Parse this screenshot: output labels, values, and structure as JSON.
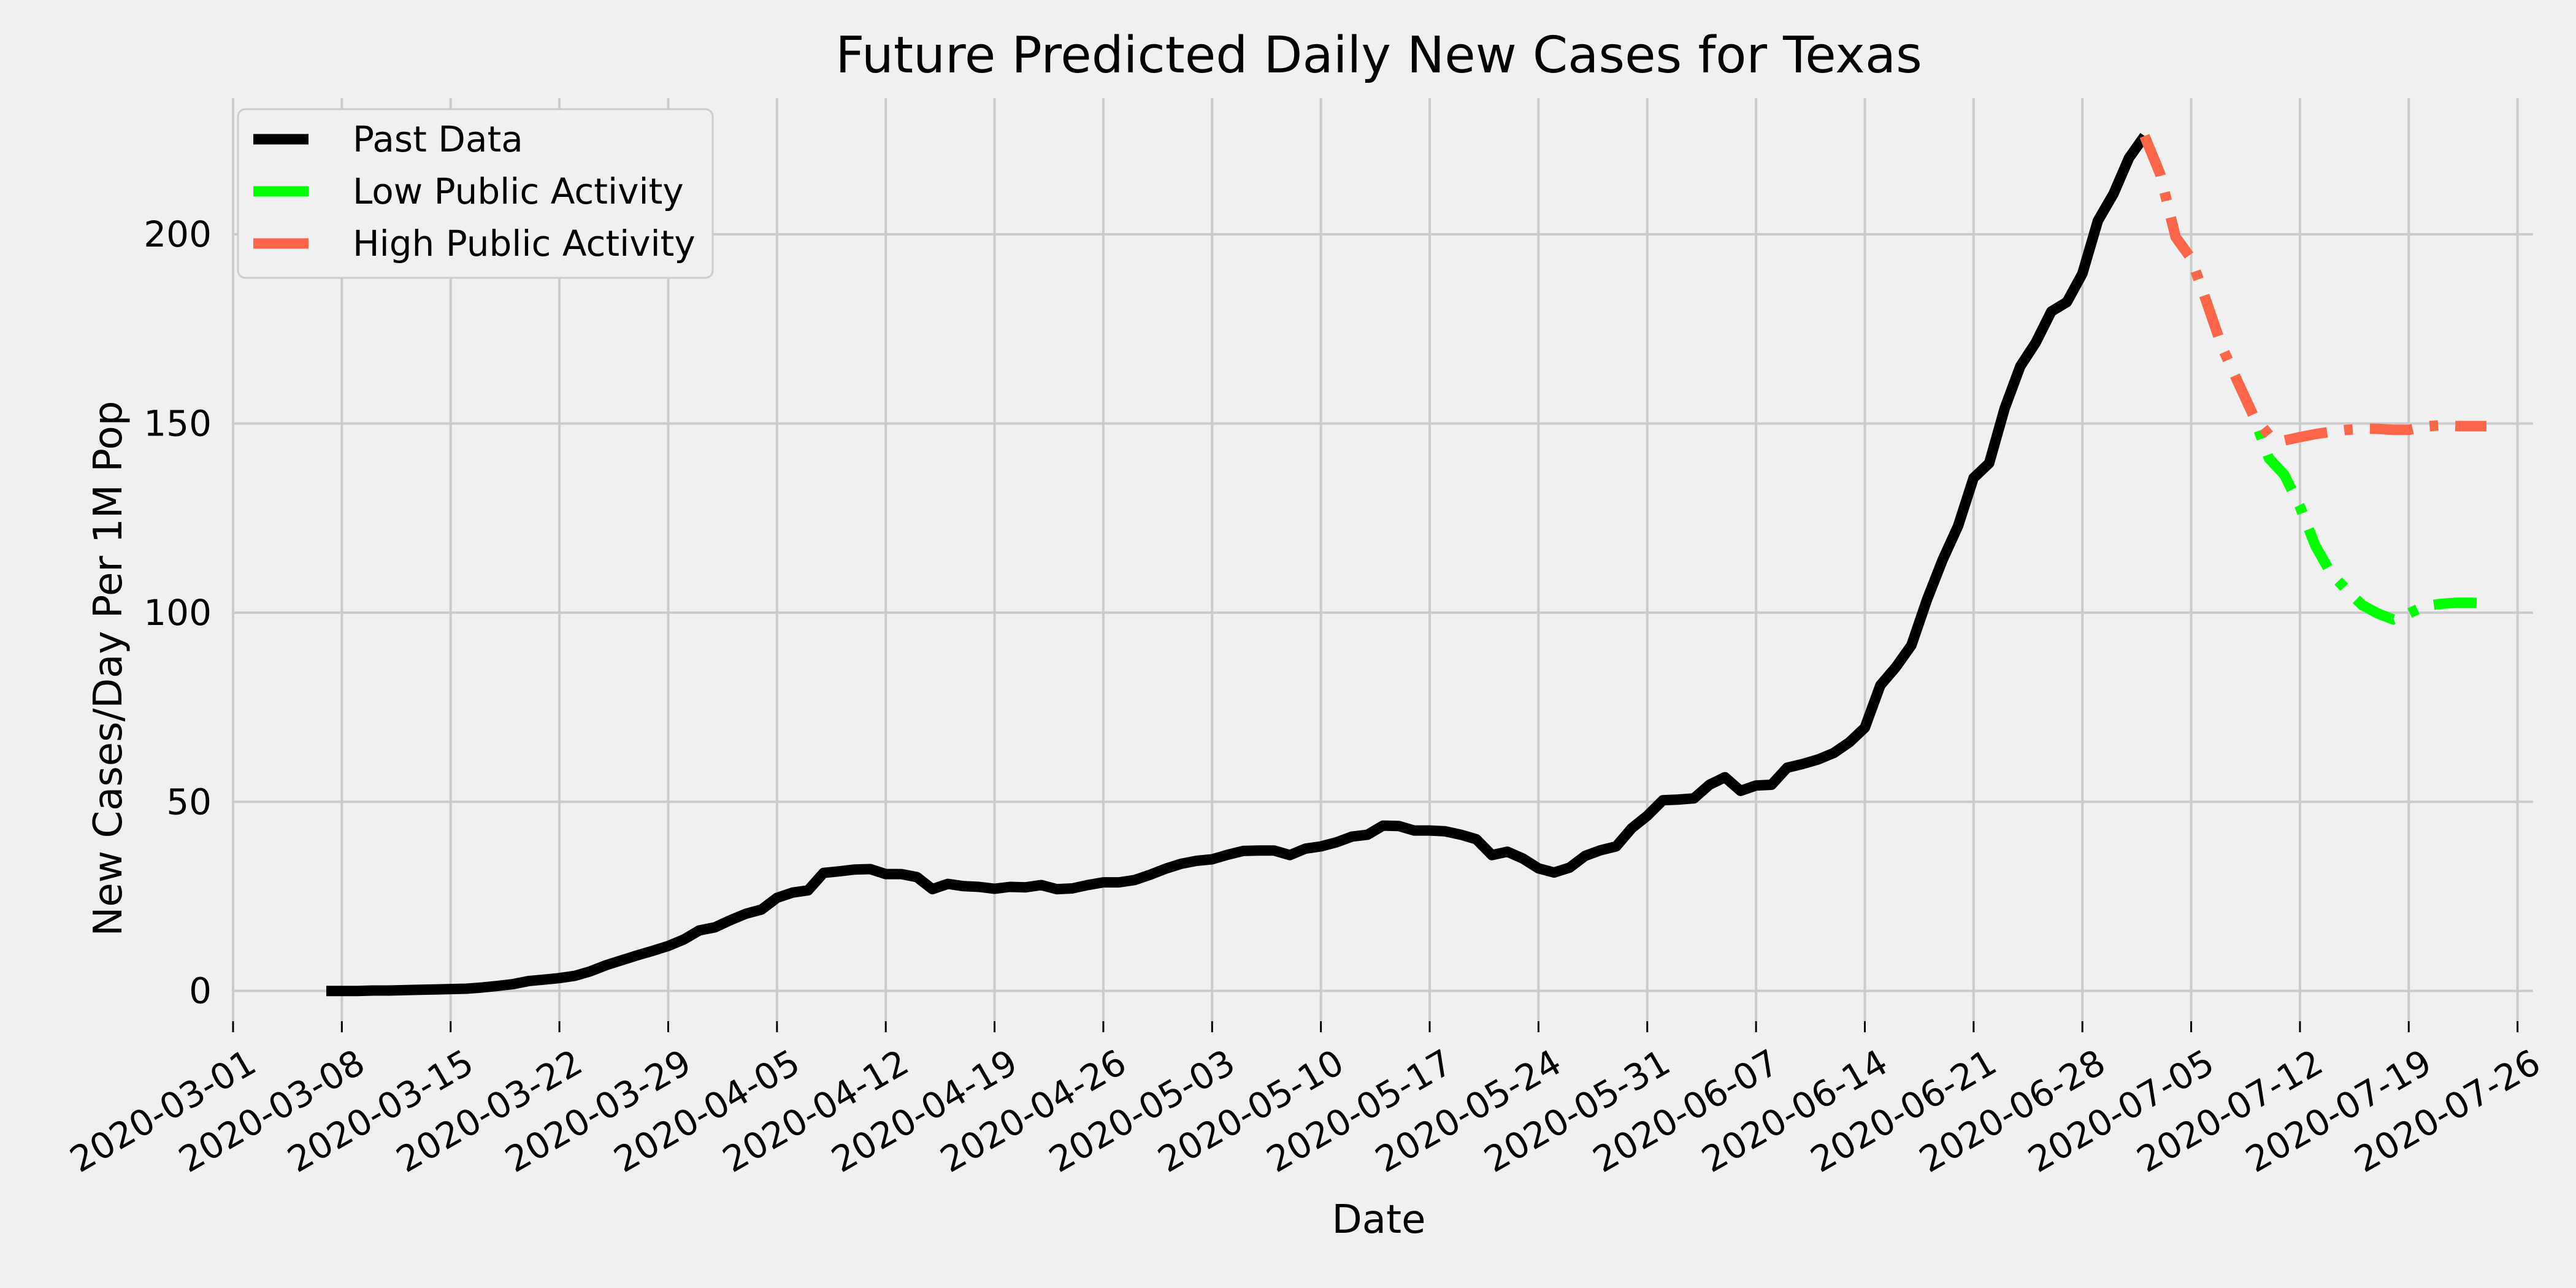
{
  "chart_data": {
    "type": "line",
    "title": "Future Predicted Daily New Cases for Texas",
    "xlabel": "Date",
    "ylabel": "New Cases/Day Per 1M Pop",
    "xlim": [
      "2020-03-01",
      "2020-07-27"
    ],
    "ylim": [
      -8,
      236
    ],
    "grid": true,
    "legend_position": "top-left",
    "x_ticks": [
      "2020-03-01",
      "2020-03-08",
      "2020-03-15",
      "2020-03-22",
      "2020-03-29",
      "2020-04-05",
      "2020-04-12",
      "2020-04-19",
      "2020-04-26",
      "2020-05-03",
      "2020-05-10",
      "2020-05-17",
      "2020-05-24",
      "2020-05-31",
      "2020-06-07",
      "2020-06-14",
      "2020-06-21",
      "2020-06-28",
      "2020-07-05",
      "2020-07-12",
      "2020-07-19",
      "2020-07-26"
    ],
    "y_ticks": [
      0,
      50,
      100,
      150,
      200
    ],
    "series": [
      {
        "name": "Past Data",
        "color": "#000000",
        "style": "solid",
        "points": [
          [
            "2020-03-07",
            0
          ],
          [
            "2020-03-08",
            0
          ],
          [
            "2020-03-09",
            0
          ],
          [
            "2020-03-10",
            0.1
          ],
          [
            "2020-03-11",
            0.1
          ],
          [
            "2020-03-12",
            0.2
          ],
          [
            "2020-03-13",
            0.3
          ],
          [
            "2020-03-14",
            0.4
          ],
          [
            "2020-03-15",
            0.5
          ],
          [
            "2020-03-16",
            0.6
          ],
          [
            "2020-03-17",
            0.9
          ],
          [
            "2020-03-18",
            1.3
          ],
          [
            "2020-03-19",
            1.8
          ],
          [
            "2020-03-20",
            2.6
          ],
          [
            "2020-03-21",
            3.0
          ],
          [
            "2020-03-22",
            3.4
          ],
          [
            "2020-03-23",
            4.0
          ],
          [
            "2020-03-24",
            5.2
          ],
          [
            "2020-03-25",
            6.8
          ],
          [
            "2020-03-26",
            8.1
          ],
          [
            "2020-03-27",
            9.4
          ],
          [
            "2020-03-28",
            10.6
          ],
          [
            "2020-03-29",
            11.9
          ],
          [
            "2020-03-30",
            13.6
          ],
          [
            "2020-03-31",
            16.0
          ],
          [
            "2020-04-01",
            16.8
          ],
          [
            "2020-04-02",
            18.7
          ],
          [
            "2020-04-03",
            20.4
          ],
          [
            "2020-04-04",
            21.5
          ],
          [
            "2020-04-05",
            24.6
          ],
          [
            "2020-04-06",
            26.0
          ],
          [
            "2020-04-07",
            26.6
          ],
          [
            "2020-04-08",
            31.2
          ],
          [
            "2020-04-09",
            31.6
          ],
          [
            "2020-04-10",
            32.1
          ],
          [
            "2020-04-11",
            32.2
          ],
          [
            "2020-04-12",
            30.9
          ],
          [
            "2020-04-13",
            30.9
          ],
          [
            "2020-04-14",
            30.1
          ],
          [
            "2020-04-15",
            26.9
          ],
          [
            "2020-04-16",
            28.3
          ],
          [
            "2020-04-17",
            27.7
          ],
          [
            "2020-04-18",
            27.5
          ],
          [
            "2020-04-19",
            27.0
          ],
          [
            "2020-04-20",
            27.5
          ],
          [
            "2020-04-21",
            27.4
          ],
          [
            "2020-04-22",
            28.0
          ],
          [
            "2020-04-23",
            26.9
          ],
          [
            "2020-04-24",
            27.1
          ],
          [
            "2020-04-25",
            28.0
          ],
          [
            "2020-04-26",
            28.7
          ],
          [
            "2020-04-27",
            28.7
          ],
          [
            "2020-04-28",
            29.3
          ],
          [
            "2020-04-29",
            30.7
          ],
          [
            "2020-04-30",
            32.3
          ],
          [
            "2020-05-01",
            33.6
          ],
          [
            "2020-05-02",
            34.4
          ],
          [
            "2020-05-03",
            34.8
          ],
          [
            "2020-05-04",
            36.0
          ],
          [
            "2020-05-05",
            37.0
          ],
          [
            "2020-05-06",
            37.1
          ],
          [
            "2020-05-07",
            37.1
          ],
          [
            "2020-05-08",
            35.9
          ],
          [
            "2020-05-09",
            37.6
          ],
          [
            "2020-05-10",
            38.2
          ],
          [
            "2020-05-11",
            39.3
          ],
          [
            "2020-05-12",
            40.8
          ],
          [
            "2020-05-13",
            41.3
          ],
          [
            "2020-05-14",
            43.7
          ],
          [
            "2020-05-15",
            43.6
          ],
          [
            "2020-05-16",
            42.4
          ],
          [
            "2020-05-17",
            42.4
          ],
          [
            "2020-05-18",
            42.2
          ],
          [
            "2020-05-19",
            41.3
          ],
          [
            "2020-05-20",
            40.1
          ],
          [
            "2020-05-21",
            35.9
          ],
          [
            "2020-05-22",
            36.8
          ],
          [
            "2020-05-23",
            35.0
          ],
          [
            "2020-05-24",
            32.4
          ],
          [
            "2020-05-25",
            31.3
          ],
          [
            "2020-05-26",
            32.6
          ],
          [
            "2020-05-27",
            35.7
          ],
          [
            "2020-05-28",
            37.2
          ],
          [
            "2020-05-29",
            38.2
          ],
          [
            "2020-05-30",
            43.0
          ],
          [
            "2020-05-31",
            46.3
          ],
          [
            "2020-06-01",
            50.4
          ],
          [
            "2020-06-02",
            50.6
          ],
          [
            "2020-06-03",
            50.9
          ],
          [
            "2020-06-04",
            54.5
          ],
          [
            "2020-06-05",
            56.5
          ],
          [
            "2020-06-06",
            52.9
          ],
          [
            "2020-06-07",
            54.3
          ],
          [
            "2020-06-08",
            54.5
          ],
          [
            "2020-06-09",
            59.0
          ],
          [
            "2020-06-10",
            60.0
          ],
          [
            "2020-06-11",
            61.2
          ],
          [
            "2020-06-12",
            62.9
          ],
          [
            "2020-06-13",
            65.7
          ],
          [
            "2020-06-14",
            69.6
          ],
          [
            "2020-06-15",
            80.8
          ],
          [
            "2020-06-16",
            85.6
          ],
          [
            "2020-06-17",
            91.4
          ],
          [
            "2020-06-18",
            103.4
          ],
          [
            "2020-06-19",
            113.9
          ],
          [
            "2020-06-20",
            122.9
          ],
          [
            "2020-06-21",
            135.6
          ],
          [
            "2020-06-22",
            139.5
          ],
          [
            "2020-06-23",
            154.0
          ],
          [
            "2020-06-24",
            165.1
          ],
          [
            "2020-06-25",
            171.4
          ],
          [
            "2020-06-26",
            179.6
          ],
          [
            "2020-06-27",
            182.1
          ],
          [
            "2020-06-28",
            189.6
          ],
          [
            "2020-06-29",
            203.6
          ],
          [
            "2020-06-30",
            210.7
          ],
          [
            "2020-07-01",
            220.2
          ],
          [
            "2020-07-02",
            226.0
          ]
        ]
      },
      {
        "name": "Low Public Activity",
        "color": "#00ff00",
        "style": "dash-dot",
        "points": [
          [
            "2020-07-02",
            226.0
          ],
          [
            "2020-07-03",
            216.0
          ],
          [
            "2020-07-04",
            199.3
          ],
          [
            "2020-07-05",
            193.6
          ],
          [
            "2020-07-06",
            182.0
          ],
          [
            "2020-07-07",
            170.1
          ],
          [
            "2020-07-08",
            161.0
          ],
          [
            "2020-07-09",
            152.1
          ],
          [
            "2020-07-10",
            140.8
          ],
          [
            "2020-07-11",
            136.4
          ],
          [
            "2020-07-12",
            128.0
          ],
          [
            "2020-07-13",
            117.6
          ],
          [
            "2020-07-14",
            110.4
          ],
          [
            "2020-07-15",
            106.0
          ],
          [
            "2020-07-16",
            102.0
          ],
          [
            "2020-07-17",
            99.8
          ],
          [
            "2020-07-18",
            98.2
          ],
          [
            "2020-07-19",
            99.8
          ],
          [
            "2020-07-20",
            101.7
          ],
          [
            "2020-07-21",
            102.3
          ],
          [
            "2020-07-22",
            102.6
          ],
          [
            "2020-07-23",
            102.6
          ],
          [
            "2020-07-24",
            102.5
          ]
        ]
      },
      {
        "name": "High Public Activity",
        "color": "#fc6549",
        "style": "dash-dot",
        "points": [
          [
            "2020-07-02",
            226.0
          ],
          [
            "2020-07-03",
            216.0
          ],
          [
            "2020-07-04",
            199.3
          ],
          [
            "2020-07-05",
            193.6
          ],
          [
            "2020-07-06",
            182.0
          ],
          [
            "2020-07-07",
            170.1
          ],
          [
            "2020-07-08",
            161.0
          ],
          [
            "2020-07-09",
            152.1
          ],
          [
            "2020-07-10",
            147.0
          ],
          [
            "2020-07-11",
            145.5
          ],
          [
            "2020-07-12",
            146.4
          ],
          [
            "2020-07-13",
            147.2
          ],
          [
            "2020-07-14",
            147.8
          ],
          [
            "2020-07-15",
            148.3
          ],
          [
            "2020-07-16",
            148.6
          ],
          [
            "2020-07-17",
            148.6
          ],
          [
            "2020-07-18",
            148.3
          ],
          [
            "2020-07-19",
            148.3
          ],
          [
            "2020-07-20",
            149.2
          ],
          [
            "2020-07-21",
            149.5
          ],
          [
            "2020-07-22",
            149.3
          ],
          [
            "2020-07-23",
            149.3
          ],
          [
            "2020-07-24",
            149.3
          ]
        ]
      }
    ]
  }
}
